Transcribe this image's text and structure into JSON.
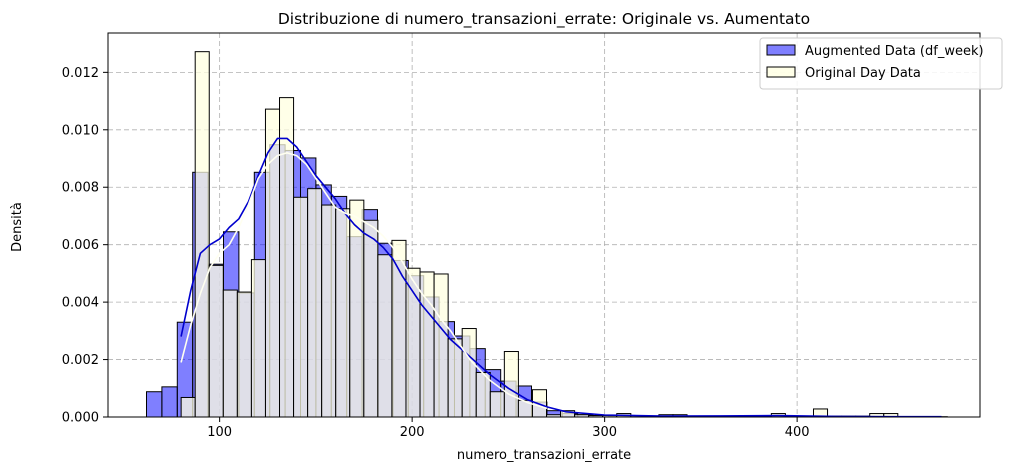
{
  "chart_data": {
    "type": "histogram",
    "title": "Distribuzione di numero_transazioni_errate: Originale vs. Aumentato",
    "xlabel": "numero_transazioni_errate",
    "ylabel": "Densità",
    "xlim": [
      42,
      495
    ],
    "ylim": [
      0,
      0.01337
    ],
    "x_ticks": [
      100,
      200,
      300,
      400
    ],
    "x_tick_labels": [
      "100",
      "200",
      "300",
      "400"
    ],
    "y_ticks": [
      0,
      0.002,
      0.004,
      0.006,
      0.008,
      0.01,
      0.012
    ],
    "y_tick_labels": [
      "0.000",
      "0.002",
      "0.004",
      "0.006",
      "0.008",
      "0.010",
      "0.012"
    ],
    "grid": true,
    "legend_position": "top-right",
    "series": [
      {
        "name": "Augmented Data (df_week)",
        "color": "#0000ff",
        "fill_opacity": 0.5,
        "bin_width": 8,
        "bins": [
          [
            62,
            0.00088
          ],
          [
            70,
            0.00105
          ],
          [
            78,
            0.0033
          ],
          [
            86,
            0.00852
          ],
          [
            94,
            0.00532
          ],
          [
            102,
            0.00645
          ],
          [
            110,
            0.00432
          ],
          [
            118,
            0.00852
          ],
          [
            126,
            0.00948
          ],
          [
            134,
            0.00928
          ],
          [
            142,
            0.00902
          ],
          [
            150,
            0.00808
          ],
          [
            158,
            0.00768
          ],
          [
            166,
            0.00628
          ],
          [
            174,
            0.00722
          ],
          [
            182,
            0.00605
          ],
          [
            190,
            0.00545
          ],
          [
            198,
            0.00492
          ],
          [
            206,
            0.00418
          ],
          [
            214,
            0.00332
          ],
          [
            222,
            0.00282
          ],
          [
            230,
            0.00238
          ],
          [
            238,
            0.00165
          ],
          [
            246,
            0.00125
          ],
          [
            254,
            0.00108
          ],
          [
            262,
            0.00052
          ],
          [
            270,
            0.00022
          ],
          [
            278,
            0.00012
          ],
          [
            286,
            8e-05
          ],
          [
            294,
            5e-05
          ],
          [
            302,
            3e-05
          ],
          [
            310,
            2e-05
          ],
          [
            318,
            2e-05
          ],
          [
            326,
            2e-05
          ],
          [
            334,
            1e-05
          ],
          [
            342,
            1e-05
          ],
          [
            350,
            1e-05
          ],
          [
            358,
            1e-05
          ],
          [
            366,
            1e-05
          ],
          [
            374,
            1e-05
          ],
          [
            382,
            1e-05
          ],
          [
            390,
            1e-05
          ],
          [
            398,
            1e-05
          ],
          [
            406,
            1e-05
          ],
          [
            414,
            1e-05
          ],
          [
            422,
            1e-05
          ],
          [
            430,
            1e-05
          ],
          [
            438,
            1e-05
          ],
          [
            446,
            1e-05
          ],
          [
            454,
            1e-05
          ],
          [
            462,
            1e-05
          ],
          [
            470,
            1e-05
          ]
        ],
        "kde": {
          "x": [
            80,
            85,
            90,
            95,
            100,
            105,
            110,
            115,
            120,
            125,
            130,
            135,
            140,
            145,
            150,
            155,
            160,
            165,
            170,
            175,
            180,
            185,
            190,
            195,
            200,
            205,
            210,
            215,
            220,
            225,
            230,
            240,
            250,
            260,
            270,
            280,
            300,
            330,
            360,
            390,
            420,
            450,
            475
          ],
          "y": [
            0.0028,
            0.0044,
            0.0057,
            0.006,
            0.0062,
            0.0066,
            0.0069,
            0.0075,
            0.0084,
            0.0092,
            0.0097,
            0.0097,
            0.0094,
            0.0089,
            0.0084,
            0.008,
            0.0076,
            0.0071,
            0.0067,
            0.0064,
            0.0062,
            0.0059,
            0.0055,
            0.0049,
            0.0044,
            0.0039,
            0.0035,
            0.0031,
            0.0027,
            0.0024,
            0.0021,
            0.0015,
            0.001,
            0.0006,
            0.00035,
            0.00018,
            7e-05,
            3e-05,
            4e-05,
            5e-05,
            2e-05,
            1e-05,
            1e-05
          ]
        }
      },
      {
        "name": "Original Day Data",
        "color": "#ffffe0",
        "fill_opacity": 0.75,
        "bin_width": 7.3,
        "bins": [
          [
            80.0,
            0.00068
          ],
          [
            87.3,
            0.01272
          ],
          [
            94.6,
            0.00528
          ],
          [
            101.9,
            0.00442
          ],
          [
            109.2,
            0.00435
          ],
          [
            116.5,
            0.00548
          ],
          [
            123.8,
            0.01072
          ],
          [
            131.1,
            0.01112
          ],
          [
            138.4,
            0.00765
          ],
          [
            145.7,
            0.00795
          ],
          [
            153.0,
            0.00738
          ],
          [
            160.3,
            0.00725
          ],
          [
            167.6,
            0.00755
          ],
          [
            174.9,
            0.00685
          ],
          [
            182.2,
            0.00565
          ],
          [
            189.5,
            0.00615
          ],
          [
            196.8,
            0.00518
          ],
          [
            204.1,
            0.00505
          ],
          [
            211.4,
            0.00498
          ],
          [
            218.7,
            0.00272
          ],
          [
            226.0,
            0.00308
          ],
          [
            233.3,
            0.00155
          ],
          [
            240.6,
            0.00088
          ],
          [
            247.9,
            0.00228
          ],
          [
            255.2,
            0.00058
          ],
          [
            262.5,
            0.00095
          ],
          [
            269.8,
            8e-05
          ],
          [
            277.1,
            0.00022
          ],
          [
            284.4,
            8e-05
          ],
          [
            291.7,
            5e-05
          ],
          [
            299.0,
            5e-05
          ],
          [
            306.3,
            0.00012
          ],
          [
            313.6,
            5e-05
          ],
          [
            320.9,
            3e-05
          ],
          [
            328.2,
            8e-05
          ],
          [
            335.5,
            8e-05
          ],
          [
            342.8,
            3e-05
          ],
          [
            350.1,
            3e-05
          ],
          [
            357.4,
            3e-05
          ],
          [
            364.7,
            3e-05
          ],
          [
            372.0,
            3e-05
          ],
          [
            379.3,
            3e-05
          ],
          [
            386.6,
            0.00012
          ],
          [
            393.9,
            3e-05
          ],
          [
            401.2,
            3e-05
          ],
          [
            408.5,
            0.00028
          ],
          [
            415.8,
            3e-05
          ],
          [
            423.1,
            3e-05
          ],
          [
            430.4,
            3e-05
          ],
          [
            437.7,
            0.00012
          ],
          [
            445.0,
            0.00012
          ]
        ],
        "kde": {
          "x": [
            80,
            85,
            90,
            95,
            100,
            105,
            110,
            115,
            120,
            125,
            130,
            135,
            140,
            145,
            150,
            155,
            160,
            165,
            170,
            175,
            180,
            185,
            190,
            195,
            200,
            205,
            210,
            215,
            220,
            225,
            230,
            240,
            250,
            260,
            270
          ],
          "y": [
            0.0019,
            0.0032,
            0.0043,
            0.0052,
            0.0057,
            0.006,
            0.0066,
            0.0074,
            0.0083,
            0.0088,
            0.0091,
            0.0092,
            0.0091,
            0.0088,
            0.0083,
            0.0078,
            0.0073,
            0.0071,
            0.007,
            0.0068,
            0.0066,
            0.0063,
            0.0059,
            0.0054,
            0.0048,
            0.0043,
            0.0039,
            0.0034,
            0.003,
            0.0025,
            0.002,
            0.0013,
            0.0008,
            0.0005,
            0.0003
          ]
        }
      }
    ]
  }
}
